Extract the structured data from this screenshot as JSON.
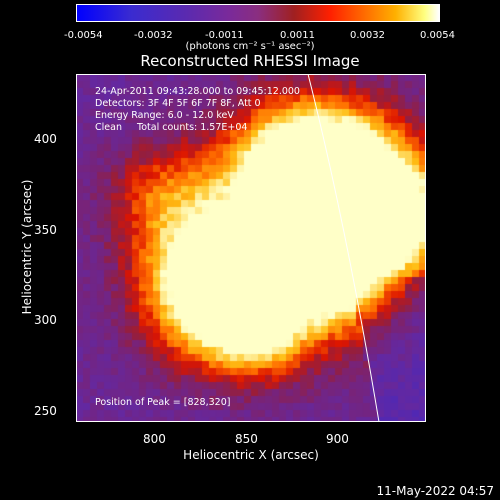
{
  "colorbar": {
    "ticks": [
      "-0.0054",
      "-0.0032",
      "-0.0011",
      "0.0011",
      "0.0032",
      "0.0054"
    ],
    "unit_label": "(photons cm⁻² s⁻¹ asec⁻²)"
  },
  "title": "Reconstructed RHESSI Image",
  "info": {
    "time_range": "24-Apr-2011 09:43:28.000 to 09:45:12.000",
    "detectors": "Detectors: 3F 4F 5F 6F 7F 8F, Att 0",
    "energy": "Energy Range: 6.0 - 12.0 keV",
    "clean": "Clean     Total counts: 1.57E+04"
  },
  "peak_label": "Position of Peak = [828,320]",
  "axes": {
    "xlabel": "Heliocentric X (arcsec)",
    "ylabel": "Heliocentric Y (arcsec)",
    "xticks": [
      "800",
      "850",
      "900"
    ],
    "yticks": [
      "400",
      "350",
      "300",
      "250"
    ]
  },
  "timestamp": "11-May-2022 04:57"
}
